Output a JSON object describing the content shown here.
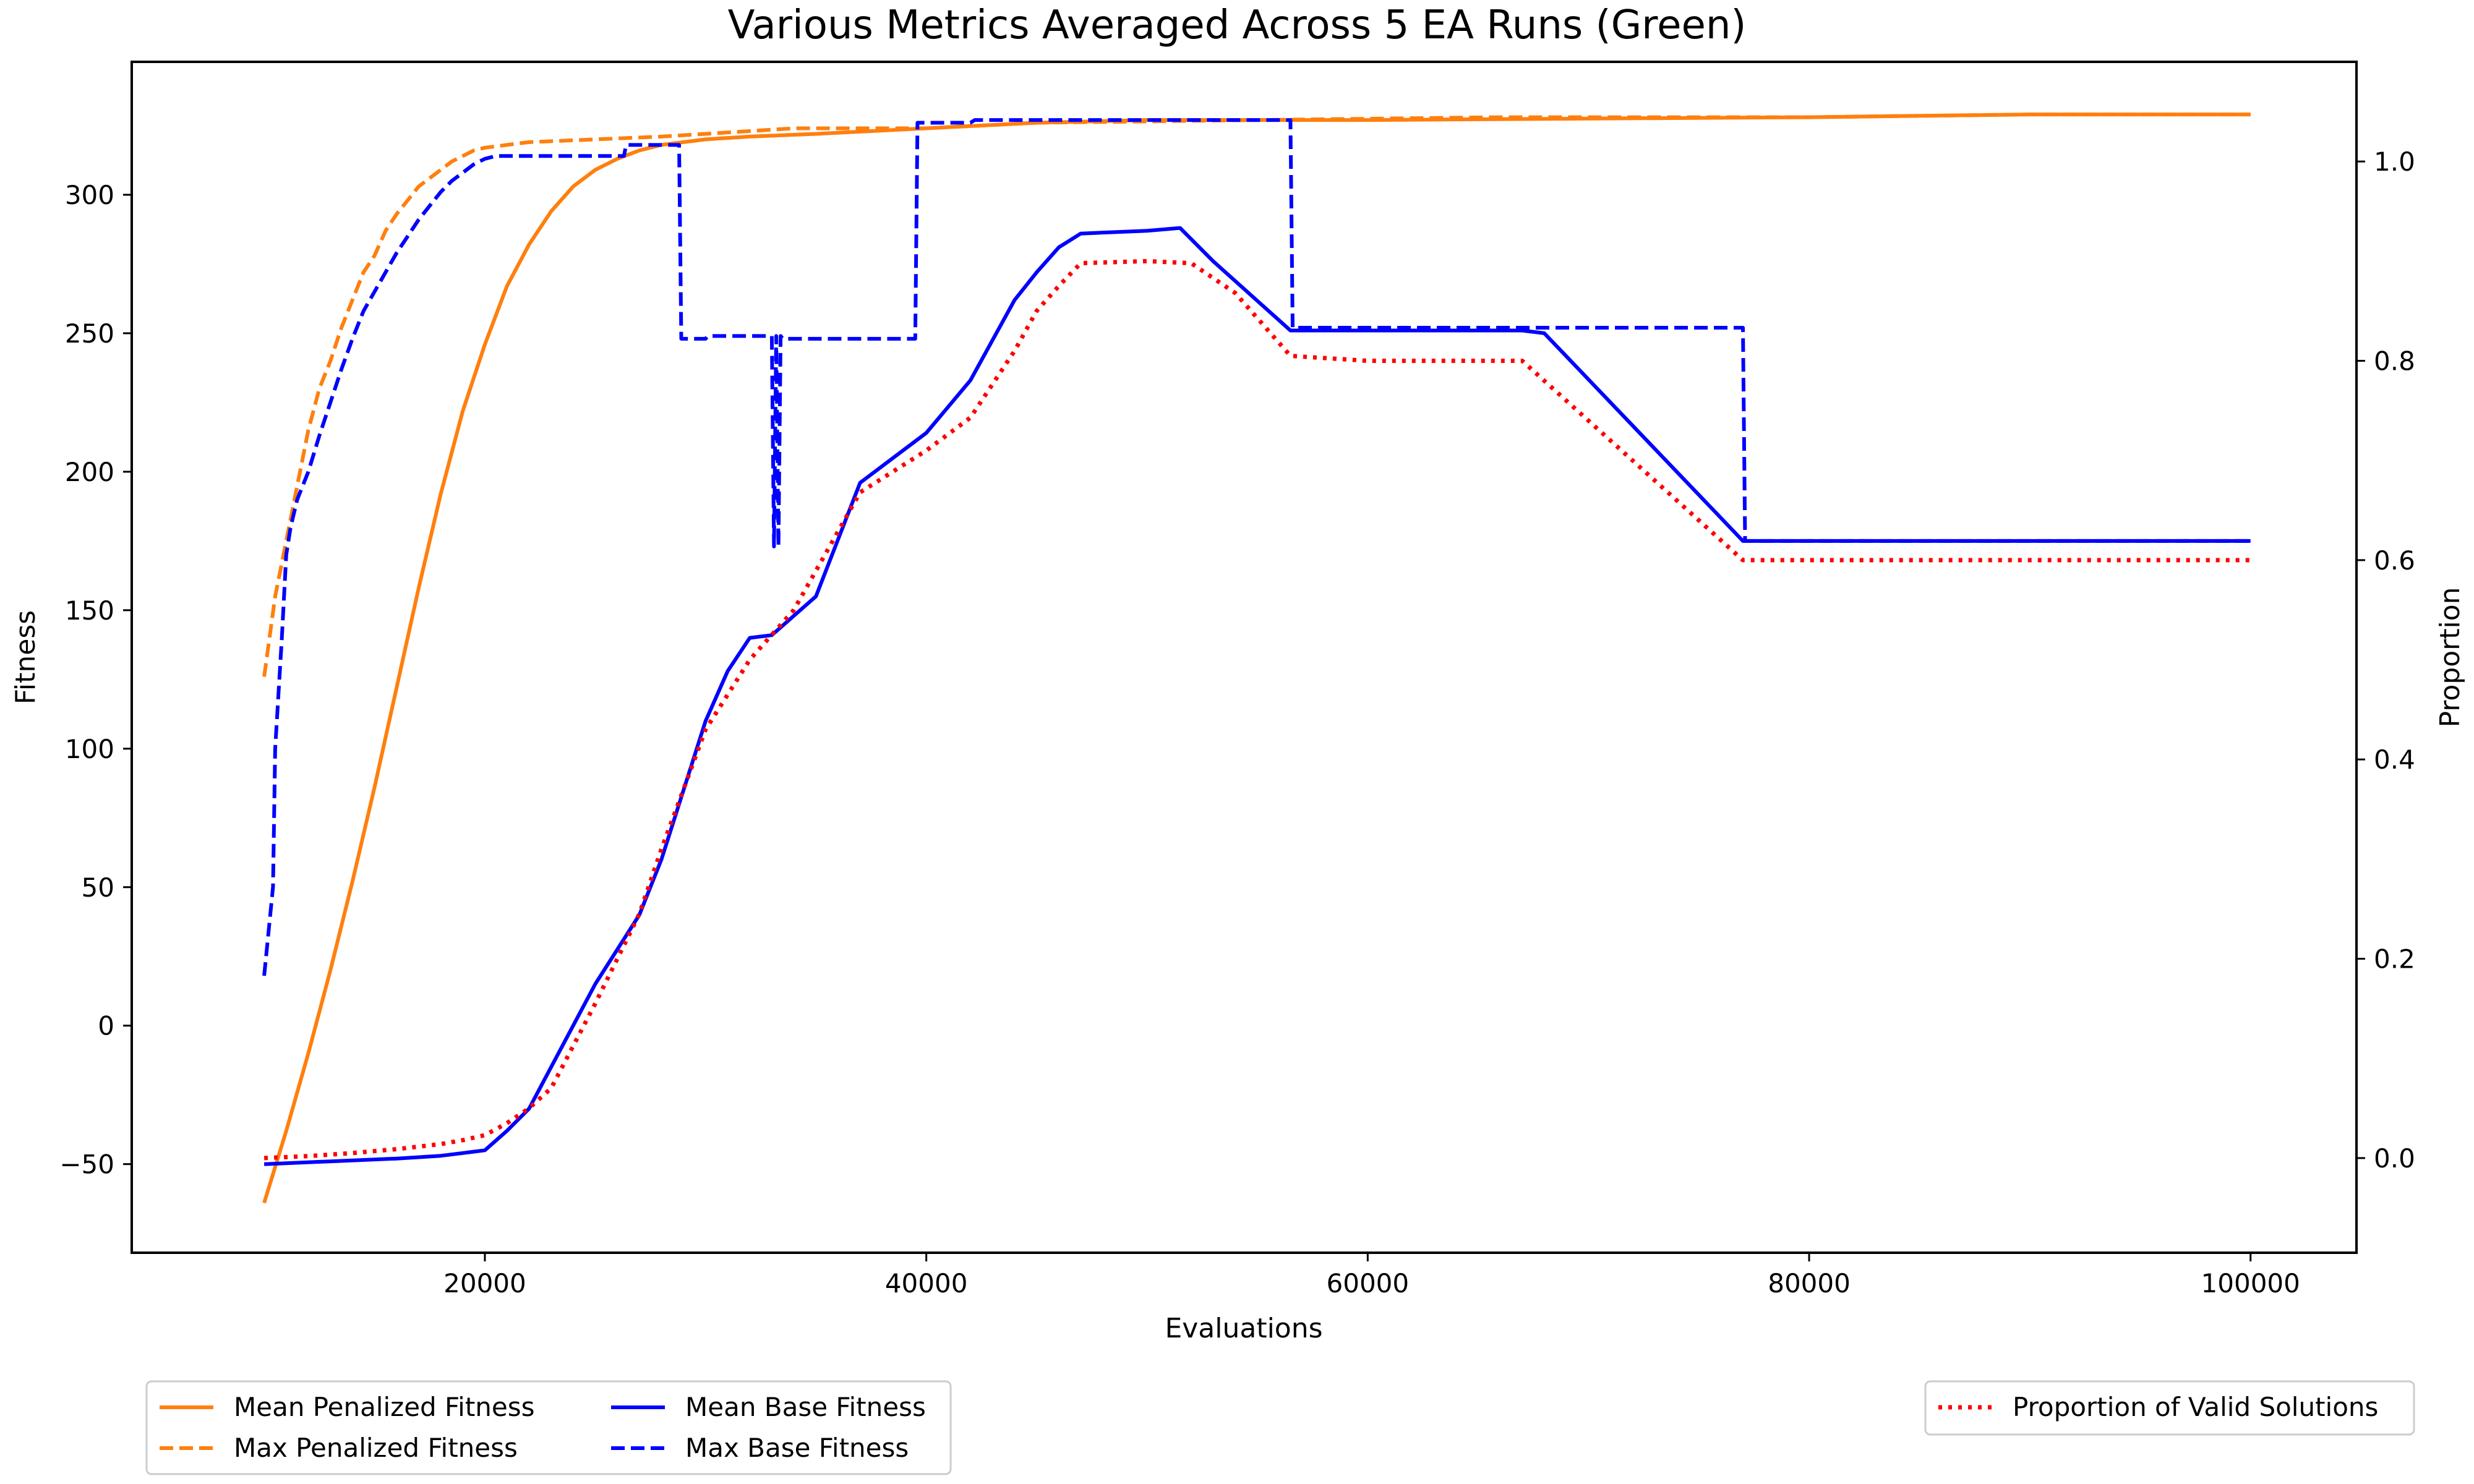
{
  "chart_data": {
    "type": "line",
    "title": "Various Metrics Averaged Across 5 EA Runs (Green)",
    "xlabel": "Evaluations",
    "ylabel": "Fitness",
    "y2label": "Proportion",
    "xlim": [
      4000,
      104800
    ],
    "ylim": [
      -82,
      348
    ],
    "y2lim": [
      -0.095,
      1.1
    ],
    "xticks": [
      20000,
      40000,
      60000,
      80000,
      100000
    ],
    "yticks": [
      -50,
      0,
      50,
      100,
      150,
      200,
      250,
      300
    ],
    "y2ticks": [
      0.0,
      0.2,
      0.4,
      0.6,
      0.8,
      1.0
    ],
    "xtick_labels": [
      "20000",
      "40000",
      "60000",
      "80000",
      "100000"
    ],
    "ytick_labels": [
      "−50",
      "0",
      "50",
      "100",
      "150",
      "200",
      "250",
      "300"
    ],
    "y2tick_labels": [
      "0.0",
      "0.2",
      "0.4",
      "0.6",
      "0.8",
      "1.0"
    ],
    "grid": false,
    "legend_left_position": "below-left",
    "legend_right_position": "below-right",
    "series": [
      {
        "name": "Mean Penalized Fitness",
        "axis": "left",
        "color": "#ff7f0e",
        "style": "solid",
        "x": [
          10000,
          11000,
          12000,
          13000,
          14000,
          15000,
          16000,
          17000,
          18000,
          19000,
          20000,
          21000,
          22000,
          23000,
          24000,
          25000,
          26000,
          27000,
          28000,
          29000,
          30000,
          32000,
          35000,
          40000,
          45000,
          50000,
          60000,
          70000,
          80000,
          90000,
          100000
        ],
        "y": [
          -64,
          -38,
          -10,
          20,
          52,
          86,
          122,
          158,
          192,
          222,
          246,
          267,
          282,
          294,
          303,
          309,
          313,
          316,
          318,
          319,
          320,
          321,
          322,
          324,
          326,
          327,
          327,
          327.5,
          328,
          329,
          329
        ]
      },
      {
        "name": "Max Penalized Fitness",
        "axis": "left",
        "color": "#ff7f0e",
        "style": "dashed",
        "x": [
          10000,
          10500,
          11000,
          11500,
          12000,
          12500,
          13000,
          13500,
          14000,
          14500,
          15000,
          15500,
          16000,
          16500,
          17000,
          17500,
          18000,
          18500,
          19000,
          19500,
          20000,
          21000,
          22000,
          25000,
          28000,
          30000,
          34000,
          40000,
          45000,
          55000,
          66000,
          80000,
          90000,
          100000
        ],
        "y": [
          126,
          155,
          175,
          195,
          215,
          230,
          240,
          252,
          262,
          272,
          278,
          287,
          293,
          298,
          303,
          306,
          309,
          312,
          314,
          316,
          317,
          318,
          319,
          320,
          321,
          322,
          324,
          324,
          326,
          327,
          328,
          328,
          329,
          329
        ]
      },
      {
        "name": "Mean Base Fitness",
        "axis": "left",
        "color": "#0000ff",
        "style": "solid",
        "x": [
          10000,
          13000,
          16000,
          18000,
          19000,
          20000,
          21000,
          22000,
          23000,
          25000,
          27000,
          28000,
          29000,
          30000,
          31000,
          32000,
          33000,
          35000,
          37000,
          40000,
          42000,
          44000,
          45000,
          46000,
          47000,
          50000,
          51500,
          53000,
          56500,
          60000,
          67000,
          68000,
          77000,
          80000,
          90000,
          100000
        ],
        "y": [
          -50,
          -49,
          -48,
          -47,
          -46,
          -45,
          -38,
          -30,
          -15,
          15,
          40,
          60,
          85,
          110,
          128,
          140,
          141,
          155,
          196,
          214,
          233,
          262,
          272,
          281,
          286,
          287,
          288,
          276,
          251,
          251,
          251,
          250,
          175,
          175,
          175,
          175
        ]
      },
      {
        "name": "Max Base Fitness",
        "axis": "left",
        "color": "#0000ff",
        "style": "dashed",
        "x": [
          10000,
          10400,
          10500,
          10800,
          11000,
          11200,
          11500,
          12000,
          12500,
          13000,
          13500,
          14000,
          14500,
          15000,
          15500,
          16000,
          16500,
          17000,
          17500,
          18000,
          18500,
          19000,
          19500,
          20000,
          20500,
          21000,
          26300,
          26400,
          28800,
          28900,
          30000,
          30100,
          32500,
          33000,
          33100,
          33200,
          33300,
          33400,
          33500,
          33600,
          39500,
          39600,
          42000,
          42200,
          56500,
          56600,
          77000,
          77100,
          90000,
          100000
        ],
        "y": [
          18,
          50,
          100,
          140,
          170,
          180,
          190,
          200,
          213,
          225,
          237,
          248,
          258,
          265,
          272,
          279,
          285,
          291,
          296,
          301,
          305,
          308,
          311,
          313,
          314,
          314,
          314,
          318,
          318,
          248,
          248,
          249,
          249,
          249,
          173,
          249,
          173,
          249,
          248,
          248,
          248,
          326,
          326,
          327,
          327,
          252,
          252,
          175,
          175,
          175
        ]
      },
      {
        "name": "Proportion of Valid Solutions",
        "axis": "right",
        "color": "#ff0000",
        "style": "dotted",
        "x": [
          10000,
          12000,
          14000,
          16000,
          18000,
          19000,
          20000,
          21000,
          22000,
          23000,
          25000,
          27000,
          28000,
          30000,
          32000,
          34000,
          37000,
          40000,
          42000,
          44000,
          45000,
          46000,
          47000,
          50000,
          52000,
          54000,
          56500,
          60000,
          66000,
          67000,
          77000,
          80000,
          90000,
          100000
        ],
        "y": [
          0.0,
          0.002,
          0.005,
          0.009,
          0.014,
          0.018,
          0.023,
          0.035,
          0.05,
          0.07,
          0.155,
          0.245,
          0.31,
          0.43,
          0.5,
          0.55,
          0.668,
          0.71,
          0.743,
          0.81,
          0.85,
          0.875,
          0.898,
          0.9,
          0.898,
          0.868,
          0.805,
          0.8,
          0.8,
          0.8,
          0.6,
          0.6,
          0.6,
          0.6
        ]
      }
    ]
  }
}
